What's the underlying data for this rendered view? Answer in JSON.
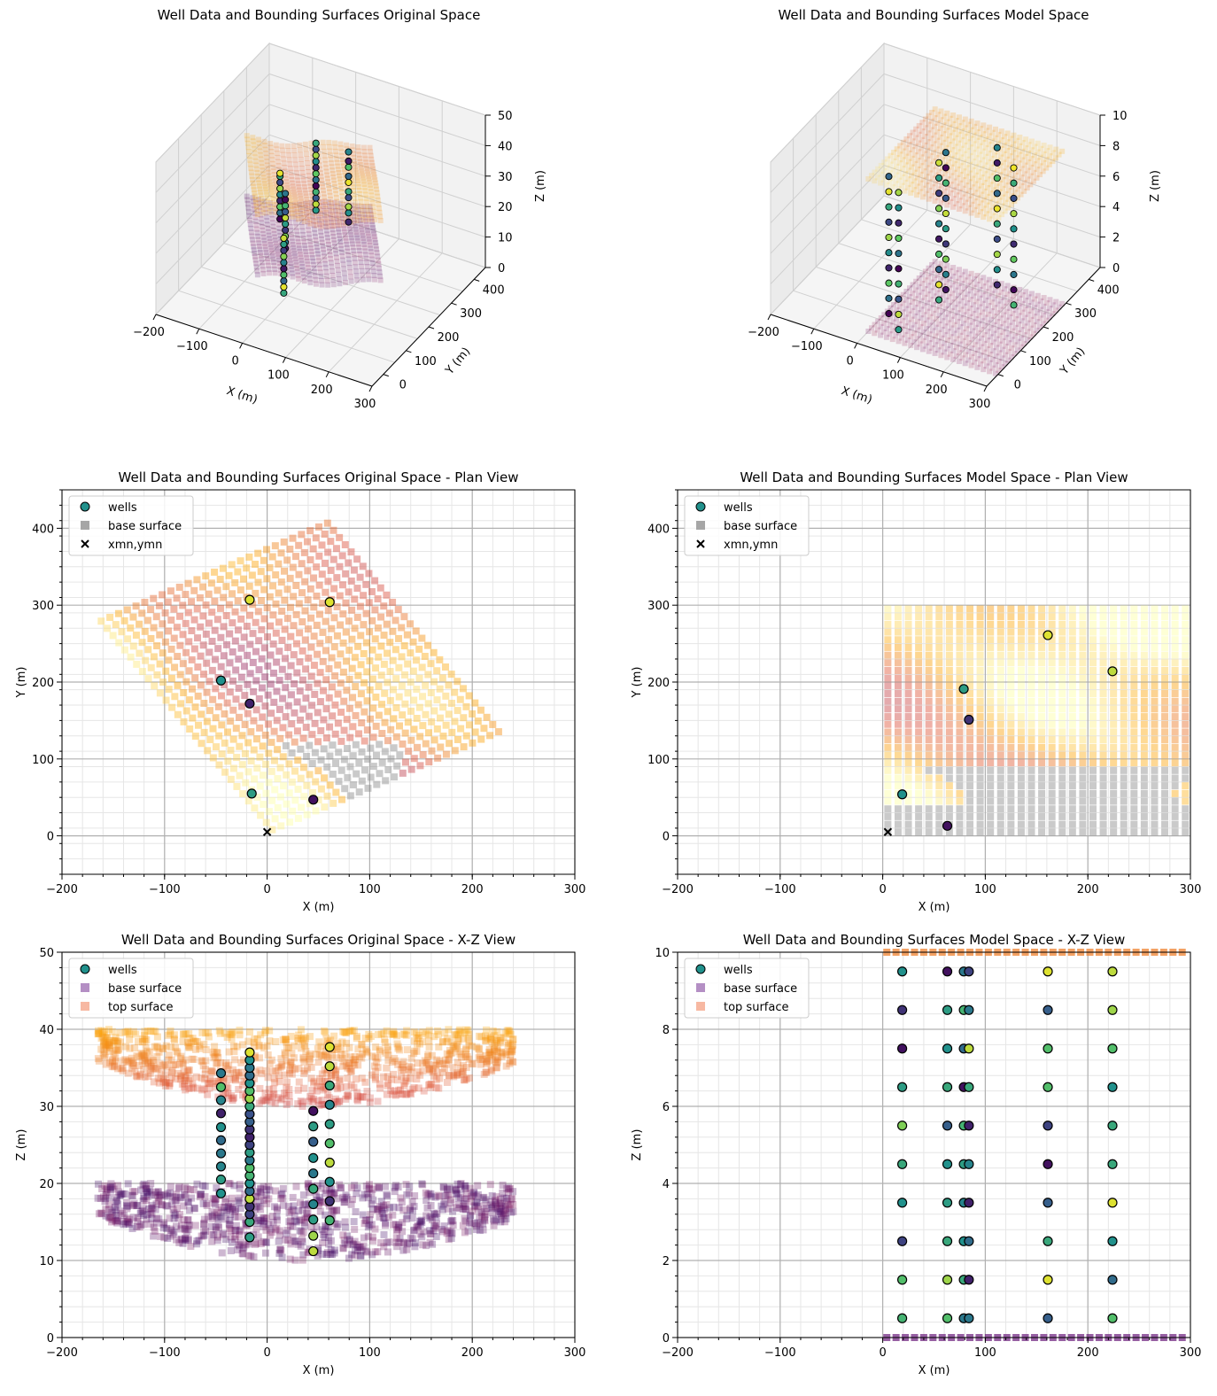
{
  "colors": {
    "grid_major": "#b0b0b0",
    "grid_minor": "#e6e6e6",
    "axis": "#000000",
    "pane": "#f2f2f2",
    "pane_edge": "#cfcfcf",
    "inferno": [
      "#000004",
      "#420a68",
      "#932667",
      "#dd513a",
      "#fca50a",
      "#fcffa4"
    ],
    "viridis": [
      "#440154",
      "#3b528b",
      "#21918c",
      "#5ec962",
      "#fde725"
    ],
    "base_surface_xz": "#6a1b7a",
    "top_surface_xz": "#f08a3c",
    "legend_base_plan": "#a6a6a6",
    "legend_base_xz": "#b48fc4",
    "legend_top_xz": "#f7b8a2"
  },
  "chart_data": [
    {
      "id": "orig3d",
      "type": "scatter",
      "title": "Well Data and Bounding Surfaces Original Space",
      "xlabel": "X (m)",
      "ylabel": "Y (m)",
      "zlabel": "Z (m)",
      "xlim": [
        -200,
        300
      ],
      "ylim": [
        -50,
        450
      ],
      "zlim": [
        0,
        50
      ],
      "xticks": [
        "−200",
        "−100",
        "0",
        "100",
        "200",
        "300"
      ],
      "yticks": [
        "0",
        "100",
        "200",
        "300",
        "400"
      ],
      "zticks": [
        "0",
        "10",
        "20",
        "30",
        "40",
        "50"
      ],
      "wells": [
        {
          "x": -45,
          "y": 202,
          "z": [
            19,
            21,
            23,
            25,
            27,
            29,
            31,
            33,
            34
          ]
        },
        {
          "x": -17,
          "y": 307,
          "z": [
            15,
            17,
            19,
            21,
            23,
            25,
            27,
            29,
            31,
            33,
            35,
            37
          ]
        },
        {
          "x": -17,
          "y": 172,
          "z": [
            13,
            15,
            17,
            19,
            21,
            23,
            25,
            27,
            29,
            31
          ]
        },
        {
          "x": 45,
          "y": 47,
          "z": [
            11,
            13,
            15,
            17,
            19,
            21,
            23,
            25,
            27,
            29
          ]
        },
        {
          "x": 60,
          "y": 304,
          "z": [
            15,
            18,
            20,
            23,
            25,
            28,
            30,
            33,
            35,
            38
          ]
        }
      ]
    },
    {
      "id": "model3d",
      "type": "scatter",
      "title": "Well Data and Bounding Surfaces Model Space",
      "xlabel": "X (m)",
      "ylabel": "Y (m)",
      "zlabel": "Z (m)",
      "xlim": [
        -200,
        300
      ],
      "ylim": [
        -50,
        450
      ],
      "zlim": [
        0,
        10
      ],
      "xticks": [
        "−200",
        "−100",
        "0",
        "100",
        "200",
        "300"
      ],
      "yticks": [
        "0",
        "100",
        "200",
        "300",
        "400"
      ],
      "zticks": [
        "0",
        "2",
        "4",
        "6",
        "8",
        "10"
      ],
      "wells": [
        {
          "x": 19,
          "y": 54,
          "z": [
            0.5,
            1.5,
            2.5,
            3.5,
            4.5,
            5.5,
            6.5,
            7.5,
            8.5,
            9.5
          ]
        },
        {
          "x": 63,
          "y": 13,
          "z": [
            0.5,
            1.5,
            2.5,
            3.5,
            4.5,
            5.5,
            6.5,
            7.5,
            8.5,
            9.5
          ]
        },
        {
          "x": 79,
          "y": 191,
          "z": [
            0.5,
            1.5,
            2.5,
            3.5,
            4.5,
            5.5,
            6.5,
            7.5,
            8.5,
            9.5
          ]
        },
        {
          "x": 84,
          "y": 151,
          "z": [
            0.5,
            1.5,
            2.5,
            3.5,
            4.5,
            5.5,
            6.5,
            7.5,
            8.5,
            9.5
          ]
        },
        {
          "x": 161,
          "y": 261,
          "z": [
            0.5,
            1.5,
            2.5,
            3.5,
            4.5,
            5.5,
            6.5,
            7.5,
            8.5,
            9.5
          ]
        },
        {
          "x": 224,
          "y": 214,
          "z": [
            0.5,
            1.5,
            2.5,
            3.5,
            4.5,
            5.5,
            6.5,
            7.5,
            8.5,
            9.5
          ]
        }
      ]
    },
    {
      "id": "origplan",
      "type": "scatter",
      "title": "Well Data and Bounding Surfaces Original Space - Plan View",
      "xlabel": "X (m)",
      "ylabel": "Y (m)",
      "xlim": [
        -200,
        300
      ],
      "ylim": [
        -50,
        450
      ],
      "xticks": [
        -200,
        -100,
        0,
        100,
        200,
        300
      ],
      "yticks": [
        0,
        100,
        200,
        300,
        400
      ],
      "grid": true,
      "legend": {
        "position": "top-left",
        "entries": [
          "wells",
          "base surface",
          "xmn,ymn"
        ]
      },
      "surface_grid": {
        "origin": [
          0,
          0
        ],
        "rotation_deg": 30,
        "spacing": 10,
        "nx": 27,
        "ny": 30
      },
      "wells": [
        {
          "x": -45,
          "y": 202,
          "c": 0.5
        },
        {
          "x": -17,
          "y": 307,
          "c": 0.95
        },
        {
          "x": -17,
          "y": 172,
          "c": 0.1
        },
        {
          "x": -15,
          "y": 55,
          "c": 0.55
        },
        {
          "x": 45,
          "y": 47,
          "c": 0.05
        },
        {
          "x": 61,
          "y": 304,
          "c": 0.95
        }
      ],
      "origin_marker": {
        "x": 0,
        "y": 5
      }
    },
    {
      "id": "modelplan",
      "type": "scatter",
      "title": "Well Data and Bounding Surfaces Model Space - Plan View",
      "xlabel": "X (m)",
      "ylabel": "Y (m)",
      "xlim": [
        -200,
        300
      ],
      "ylim": [
        -50,
        450
      ],
      "xticks": [
        -200,
        -100,
        0,
        100,
        200,
        300
      ],
      "yticks": [
        0,
        100,
        200,
        300,
        400
      ],
      "grid": true,
      "legend": {
        "position": "top-left",
        "entries": [
          "wells",
          "base surface",
          "xmn,ymn"
        ]
      },
      "surface_grid": {
        "xrange": [
          0,
          300
        ],
        "yrange": [
          0,
          300
        ],
        "spacing": 10
      },
      "wells": [
        {
          "x": 19,
          "y": 54,
          "c": 0.5
        },
        {
          "x": 63,
          "y": 13,
          "c": 0.05
        },
        {
          "x": 79,
          "y": 191,
          "c": 0.55
        },
        {
          "x": 84,
          "y": 151,
          "c": 0.15
        },
        {
          "x": 161,
          "y": 261,
          "c": 0.95
        },
        {
          "x": 224,
          "y": 214,
          "c": 0.9
        }
      ],
      "origin_marker": {
        "x": 5,
        "y": 5
      }
    },
    {
      "id": "origxz",
      "type": "scatter",
      "title": "Well Data and Bounding Surfaces Original Space - X-Z View",
      "xlabel": "X (m)",
      "ylabel": "Z (m)",
      "xlim": [
        -200,
        300
      ],
      "ylim": [
        0,
        50
      ],
      "xticks": [
        -200,
        -100,
        0,
        100,
        200,
        300
      ],
      "yticks": [
        0,
        10,
        20,
        30,
        40,
        50
      ],
      "grid": true,
      "legend": {
        "position": "top-left",
        "entries": [
          "wells",
          "base surface",
          "top surface"
        ]
      },
      "base_surface": {
        "x_range": [
          -165,
          240
        ],
        "z_top": 20,
        "z_bottom": 10
      },
      "top_surface": {
        "x_range": [
          -165,
          240
        ],
        "z_top": 40,
        "z_bottom": 30
      },
      "wells": [
        {
          "x": -45,
          "z": [
            18.7,
            20.5,
            22.2,
            23.9,
            25.6,
            27.3,
            29.1,
            30.8,
            32.5,
            34.3
          ],
          "c": [
            0.5,
            0.55,
            0.45,
            0.4,
            0.35,
            0.5,
            0.1,
            0.45,
            0.7,
            0.4
          ]
        },
        {
          "x": -17,
          "z": [
            13,
            15,
            16,
            17,
            18,
            19,
            20,
            21,
            22,
            23,
            24,
            25,
            26,
            27,
            28,
            29,
            30,
            31,
            32,
            33,
            34,
            35,
            36,
            37
          ],
          "c": [
            0.55,
            0.6,
            0.2,
            0.15,
            0.9,
            0.35,
            0.5,
            0.65,
            0.7,
            0.4,
            0.55,
            0.2,
            0.1,
            0.15,
            0.3,
            0.25,
            0.6,
            0.85,
            0.7,
            0.5,
            0.35,
            0.4,
            0.5,
            0.95
          ]
        },
        {
          "x": 45,
          "z": [
            11.2,
            13.2,
            15.3,
            17.3,
            19.3,
            21.3,
            23.3,
            25.4,
            27.4,
            29.4
          ],
          "c": [
            0.9,
            0.85,
            0.55,
            0.45,
            0.6,
            0.4,
            0.5,
            0.3,
            0.55,
            0.05
          ]
        },
        {
          "x": 61,
          "z": [
            15.2,
            17.7,
            20.2,
            22.7,
            25.2,
            27.7,
            30.2,
            32.7,
            35.2,
            37.7
          ],
          "c": [
            0.65,
            0.15,
            0.5,
            0.9,
            0.7,
            0.55,
            0.45,
            0.6,
            0.9,
            0.95
          ]
        }
      ]
    },
    {
      "id": "modelxz",
      "type": "scatter",
      "title": "Well Data and Bounding Surfaces Model Space - X-Z View",
      "xlabel": "X (m)",
      "ylabel": "Z (m)",
      "xlim": [
        -200,
        300
      ],
      "ylim": [
        0,
        10
      ],
      "xticks": [
        -200,
        -100,
        0,
        100,
        200,
        300
      ],
      "yticks": [
        0,
        2,
        4,
        6,
        8,
        10
      ],
      "grid": true,
      "legend": {
        "position": "top-left",
        "entries": [
          "wells",
          "base surface",
          "top surface"
        ]
      },
      "base_surface": {
        "x_range": [
          0,
          300
        ],
        "z": 0
      },
      "top_surface": {
        "x_range": [
          0,
          300
        ],
        "z": 10
      },
      "wells": [
        {
          "x": 19,
          "z": [
            0.5,
            1.5,
            2.5,
            3.5,
            4.5,
            5.5,
            6.5,
            7.5,
            8.5,
            9.5
          ],
          "c": [
            0.65,
            0.7,
            0.2,
            0.5,
            0.6,
            0.8,
            0.55,
            0.05,
            0.15,
            0.5
          ]
        },
        {
          "x": 63,
          "z": [
            0.5,
            1.5,
            2.5,
            3.5,
            4.5,
            5.5,
            6.5,
            7.5,
            8.5,
            9.5
          ],
          "c": [
            0.7,
            0.85,
            0.6,
            0.55,
            0.5,
            0.3,
            0.6,
            0.5,
            0.55,
            0.05
          ]
        },
        {
          "x": 79,
          "z": [
            0.5,
            1.5,
            2.5,
            3.5,
            4.5,
            5.5,
            6.5,
            7.5,
            8.5,
            9.5
          ],
          "c": [
            0.4,
            0.6,
            0.5,
            0.45,
            0.55,
            0.65,
            0.05,
            0.35,
            0.65,
            0.4
          ]
        },
        {
          "x": 84,
          "z": [
            0.5,
            1.5,
            2.5,
            3.5,
            4.5,
            5.5,
            6.5,
            7.5,
            8.5,
            9.5
          ],
          "c": [
            0.4,
            0.1,
            0.35,
            0.1,
            0.45,
            0.1,
            0.6,
            0.9,
            0.4,
            0.2
          ]
        },
        {
          "x": 161,
          "z": [
            0.5,
            1.5,
            2.5,
            3.5,
            4.5,
            5.5,
            6.5,
            7.5,
            8.5,
            9.5
          ],
          "c": [
            0.3,
            0.95,
            0.6,
            0.3,
            0.05,
            0.2,
            0.7,
            0.7,
            0.3,
            0.95
          ]
        },
        {
          "x": 224,
          "z": [
            0.5,
            1.5,
            2.5,
            3.5,
            4.5,
            5.5,
            6.5,
            7.5,
            8.5,
            9.5
          ],
          "c": [
            0.7,
            0.35,
            0.5,
            0.95,
            0.6,
            0.6,
            0.5,
            0.7,
            0.85,
            0.9
          ]
        }
      ]
    }
  ]
}
